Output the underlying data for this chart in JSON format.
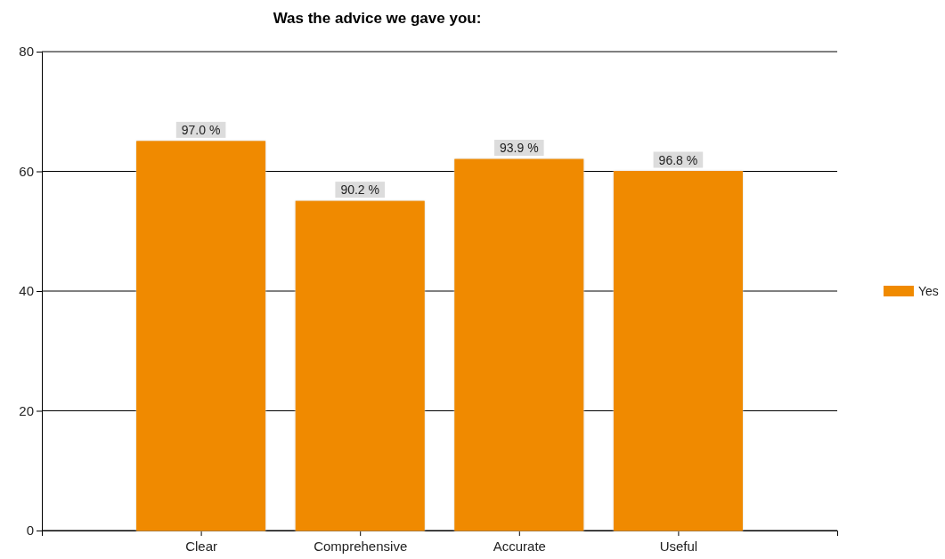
{
  "chart_data": {
    "type": "bar",
    "title": "Was the advice we gave you:",
    "categories": [
      "Clear",
      "Comprehensive",
      "Accurate",
      "Useful"
    ],
    "series": [
      {
        "name": "Yes",
        "color": "#f08a00",
        "values": [
          65,
          55,
          62,
          60
        ]
      }
    ],
    "annotations": [
      {
        "text": "97.0 %",
        "x": "Clear",
        "y": 65
      },
      {
        "text": "90.2 %",
        "x": "Comprehensive",
        "y": 55
      },
      {
        "text": "93.9 %",
        "x": "Accurate",
        "y": 62
      },
      {
        "text": "96.8 %",
        "x": "Useful",
        "y": 60
      }
    ],
    "ylim": [
      0,
      80
    ],
    "yticks": [
      0,
      20,
      40,
      60,
      80
    ],
    "grid": "y",
    "legend": "right"
  }
}
